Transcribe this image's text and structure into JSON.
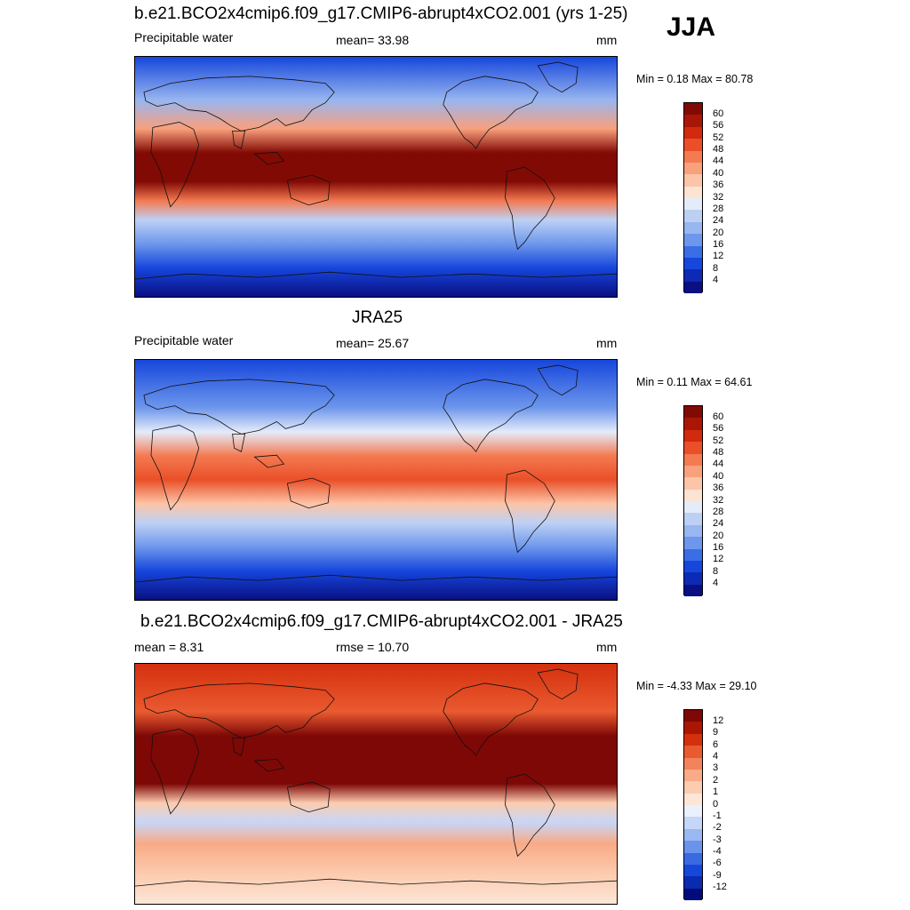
{
  "season": "JJA",
  "colors": {
    "seq": [
      "#0a0f82",
      "#0d2ab4",
      "#1646dc",
      "#3a6ee6",
      "#6d97ec",
      "#98b6f0",
      "#bdd0f4",
      "#e4ecfa",
      "#fde3d2",
      "#fcc5a8",
      "#f9a07c",
      "#f47a52",
      "#ea4f28",
      "#d22a0e",
      "#aa1606",
      "#820a04"
    ],
    "diff": [
      "#000c7c",
      "#0a2ab0",
      "#1548d8",
      "#3a6ae2",
      "#6a94ec",
      "#9ab8f2",
      "#c6d6f8",
      "#eaf0fc",
      "#fde6d8",
      "#fcccb0",
      "#f9aa86",
      "#f3835c",
      "#ea5a30",
      "#d4300e",
      "#ab1604",
      "#7e0806"
    ]
  },
  "panels": [
    {
      "title": "b.e21.BCO2x4cmip6.f09_g17.CMIP6-abrupt4xCO2.001 (yrs 1-25)",
      "left_label": "Precipitable water",
      "center_label": "mean=  33.98",
      "units": "mm",
      "minmax": "Min =   0.18 Max =  80.78",
      "cbar_labels": [
        "60",
        "56",
        "52",
        "48",
        "44",
        "40",
        "36",
        "32",
        "28",
        "24",
        "20",
        "16",
        "12",
        "8",
        "4"
      ]
    },
    {
      "title": "JRA25",
      "left_label": "Precipitable water",
      "center_label": "mean=  25.67",
      "units": "mm",
      "minmax": "Min =   0.11 Max =  64.61",
      "cbar_labels": [
        "60",
        "56",
        "52",
        "48",
        "44",
        "40",
        "36",
        "32",
        "28",
        "24",
        "20",
        "16",
        "12",
        "8",
        "4"
      ]
    },
    {
      "title": "b.e21.BCO2x4cmip6.f09_g17.CMIP6-abrupt4xCO2.001 - JRA25",
      "left_label": "mean =   8.31",
      "center_label": "rmse =  10.70",
      "units": "mm",
      "minmax": "Min =  -4.33 Max =  29.10",
      "cbar_labels": [
        "12",
        "9",
        "6",
        "4",
        "3",
        "2",
        "1",
        "0",
        "-1",
        "-2",
        "-3",
        "-4",
        "-6",
        "-9",
        "-12"
      ]
    }
  ]
}
